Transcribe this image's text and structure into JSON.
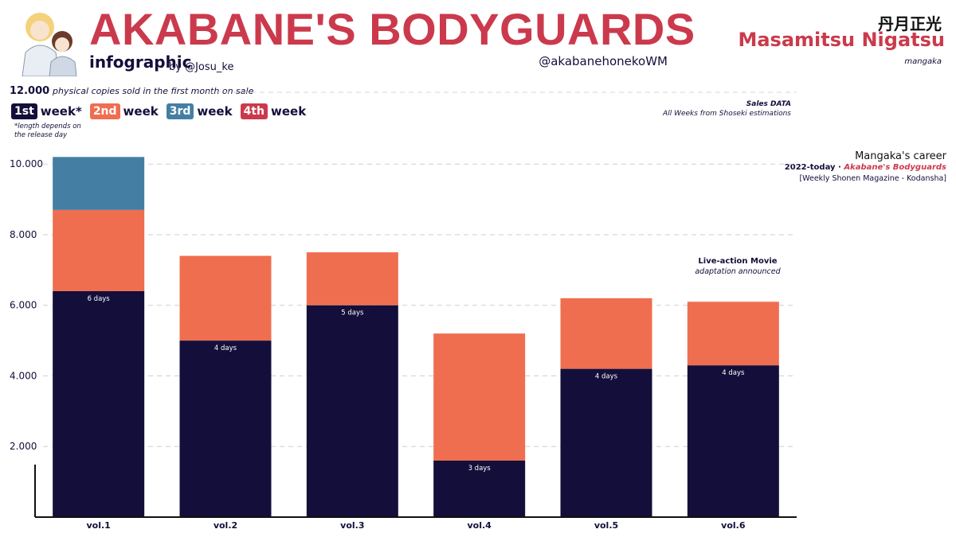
{
  "header": {
    "title": "AKABANE'S BODYGUARDS",
    "subtitle": "infographic",
    "byline": "by @Josu_ke",
    "handle": "@akabanehonekoWM"
  },
  "author": {
    "kanji": "丹月正光",
    "name": "Masamitsu Nigatsu",
    "role": "mangaka"
  },
  "info": {
    "count": "12.000",
    "desc": "physical copies sold  in the first month on sale"
  },
  "legend": {
    "items": [
      {
        "badge": "1st",
        "word": "week*",
        "color": "#130f3a"
      },
      {
        "badge": "2nd",
        "word": "week",
        "color": "#ef6e50"
      },
      {
        "badge": "3rd",
        "word": "week",
        "color": "#457ea3"
      },
      {
        "badge": "4th",
        "word": "week",
        "color": "#cb3a4c"
      }
    ],
    "note_line1": "*length depends on",
    "note_line2": "the release day"
  },
  "sales_note": {
    "line1": "Sales DATA",
    "line2": "All Weeks from Shoseki estimations"
  },
  "career": {
    "title": "Mangaka's career",
    "years": "2022-today · ",
    "work": "Akabane's Bodyguards",
    "publisher": "[Weekly Shonen Magazine - Kodansha]"
  },
  "movie_note": {
    "line1": "Live-action Movie",
    "line2": "adaptation announced"
  },
  "chart_data": {
    "type": "bar",
    "stacked": true,
    "categories": [
      "vol.1",
      "vol.2",
      "vol.3",
      "vol.4",
      "vol.5",
      "vol.6"
    ],
    "series": [
      {
        "name": "1st week",
        "color": "#130f3a",
        "values": [
          6400,
          5000,
          6000,
          1600,
          4200,
          4300
        ]
      },
      {
        "name": "2nd week",
        "color": "#ef6e50",
        "values": [
          2300,
          2400,
          1500,
          3600,
          2000,
          1800
        ]
      },
      {
        "name": "3rd week",
        "color": "#457ea3",
        "values": [
          1500,
          0,
          0,
          0,
          0,
          0
        ]
      }
    ],
    "first_week_labels": [
      "6 days",
      "4 days",
      "5 days",
      "3 days",
      "4 days",
      "4 days"
    ],
    "yticks": [
      2000,
      4000,
      6000,
      8000,
      10000
    ],
    "ytick_labels": [
      "2.000",
      "4.000",
      "6.000",
      "8.000",
      "10.000"
    ],
    "ylim": [
      0,
      10500
    ],
    "grid": true
  }
}
